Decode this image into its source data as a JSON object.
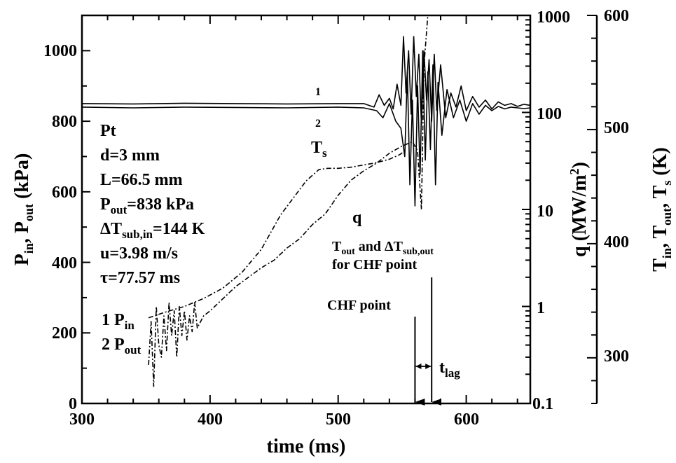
{
  "chart_data": {
    "type": "line",
    "title": "",
    "xlabel": "time (ms)",
    "xlim": [
      300,
      650
    ],
    "x_ticks": [
      "300",
      "400",
      "500",
      "600"
    ],
    "axes": {
      "left": {
        "label": "P_in, P_out (kPa)",
        "label_parts": {
          "p1": "P",
          "s1": "in",
          "p2": ", P",
          "s2": "out",
          "p3": " (kPa)"
        },
        "ylim": [
          0,
          1100
        ],
        "ticks": [
          "0",
          "200",
          "400",
          "600",
          "800",
          "1000"
        ],
        "scale": "linear"
      },
      "right1": {
        "label": "q (MW/m^2)",
        "label_parts": {
          "p1": "q (MW/m",
          "sup": "2",
          "p2": ")"
        },
        "ylim": [
          0.1,
          1000
        ],
        "ticks": [
          "0.1",
          "1",
          "10",
          "100",
          "1000"
        ],
        "scale": "log"
      },
      "right2": {
        "label": "T_in, T_out, T_s (K)",
        "label_parts": {
          "p1": "T",
          "s1": "in",
          "p2": ", T",
          "s2": "out",
          "p3": ", T",
          "s3": "s",
          "p4": " (K)"
        },
        "ylim": [
          260,
          600
        ],
        "ticks": [
          "300",
          "400",
          "500",
          "600"
        ],
        "scale": "linear"
      }
    },
    "series": [
      {
        "name": "P_in",
        "axis": "left",
        "style": "solid",
        "x": [
          300,
          340,
          380,
          420,
          460,
          500,
          520,
          528,
          532,
          536,
          540,
          543,
          546,
          549,
          551,
          553,
          555,
          557,
          559,
          561,
          563,
          565,
          567,
          569,
          571,
          573,
          575,
          577,
          580,
          584,
          588,
          592,
          596,
          600,
          605,
          610,
          615,
          620,
          625,
          630,
          635,
          640,
          645,
          650
        ],
        "y": [
          850,
          849,
          851,
          850,
          849,
          850,
          850,
          840,
          875,
          845,
          865,
          835,
          905,
          845,
          1040,
          880,
          1000,
          820,
          1040,
          870,
          990,
          790,
          1000,
          860,
          975,
          800,
          990,
          830,
          960,
          810,
          880,
          840,
          900,
          830,
          870,
          840,
          860,
          835,
          855,
          845,
          850,
          842,
          848,
          845
        ]
      },
      {
        "name": "P_out",
        "axis": "left",
        "style": "solid",
        "x": [
          300,
          340,
          380,
          420,
          460,
          500,
          520,
          530,
          535,
          540,
          545,
          549,
          552,
          554,
          556,
          558,
          560,
          562,
          564,
          566,
          568,
          570,
          572,
          574,
          576,
          578,
          581,
          585,
          590,
          595,
          600,
          605,
          610,
          615,
          620,
          625,
          630,
          635,
          640,
          645,
          650
        ],
        "y": [
          840,
          838,
          840,
          839,
          838,
          840,
          838,
          830,
          810,
          850,
          800,
          780,
          700,
          940,
          620,
          860,
          560,
          900,
          650,
          1000,
          690,
          940,
          720,
          960,
          620,
          910,
          760,
          890,
          810,
          860,
          800,
          850,
          820,
          845,
          830,
          842,
          835,
          840,
          838,
          836,
          838
        ]
      },
      {
        "name": "T_s",
        "axis": "right2",
        "style": "dashdot",
        "x": [
          352,
          365,
          380,
          395,
          410,
          425,
          440,
          455,
          465,
          475,
          485,
          492,
          500,
          510,
          520,
          530,
          540,
          548,
          553
        ],
        "y": [
          335,
          340,
          345,
          352,
          361,
          375,
          395,
          425,
          440,
          455,
          465,
          466,
          466,
          467,
          469,
          471,
          474,
          478,
          482
        ]
      },
      {
        "name": "q",
        "axis": "right1",
        "style": "dashdot",
        "x": [
          352,
          354,
          356,
          358,
          360,
          362,
          364,
          366,
          368,
          370,
          372,
          374,
          376,
          378,
          380,
          382,
          384,
          386,
          388,
          390,
          395,
          400,
          410,
          420,
          430,
          440,
          450,
          460,
          470,
          480,
          490,
          500,
          510,
          520,
          530,
          540,
          550,
          558,
          562,
          565,
          567,
          570
        ],
        "y": [
          0.25,
          0.7,
          0.15,
          1.0,
          0.4,
          0.3,
          0.8,
          0.35,
          1.1,
          0.5,
          0.9,
          0.3,
          1.0,
          0.5,
          0.9,
          0.45,
          0.8,
          0.55,
          1.1,
          0.6,
          0.8,
          0.9,
          1.2,
          1.6,
          2.0,
          2.5,
          3.0,
          4.0,
          5.0,
          7.0,
          9.0,
          14,
          20,
          25,
          30,
          38,
          45,
          50,
          40,
          10,
          300,
          1000
        ]
      }
    ],
    "annotations": {
      "pt": "Pt",
      "d": "d=3 mm",
      "L": "L=66.5 mm",
      "pout_parts": {
        "p1": "P",
        "s1": "out",
        "p2": "=838 kPa"
      },
      "dtsub_parts": {
        "p1": "ΔT",
        "s1": "sub,in",
        "p2": "=144 K"
      },
      "u": "u=3.98 m/s",
      "tau": "τ=77.57 ms",
      "legend1_parts": {
        "p1": "1 P",
        "s1": "in"
      },
      "legend2_parts": {
        "p1": "2 P",
        "s1": "out"
      },
      "label_1": "1",
      "label_2": "2",
      "ts_parts": {
        "p1": "T",
        "s1": "s"
      },
      "q": "q",
      "tout_line1_parts": {
        "p1": "T",
        "s1": "out",
        "p2": " and ΔT",
        "s2": "sub,out"
      },
      "tout_line2": "for CHF point",
      "chf": "CHF point",
      "tlag_parts": {
        "p1": "t",
        "s1": "lag"
      },
      "chf_time": 560,
      "tout_time": 573
    },
    "grid": false,
    "legend": "inline text at lower-left"
  }
}
